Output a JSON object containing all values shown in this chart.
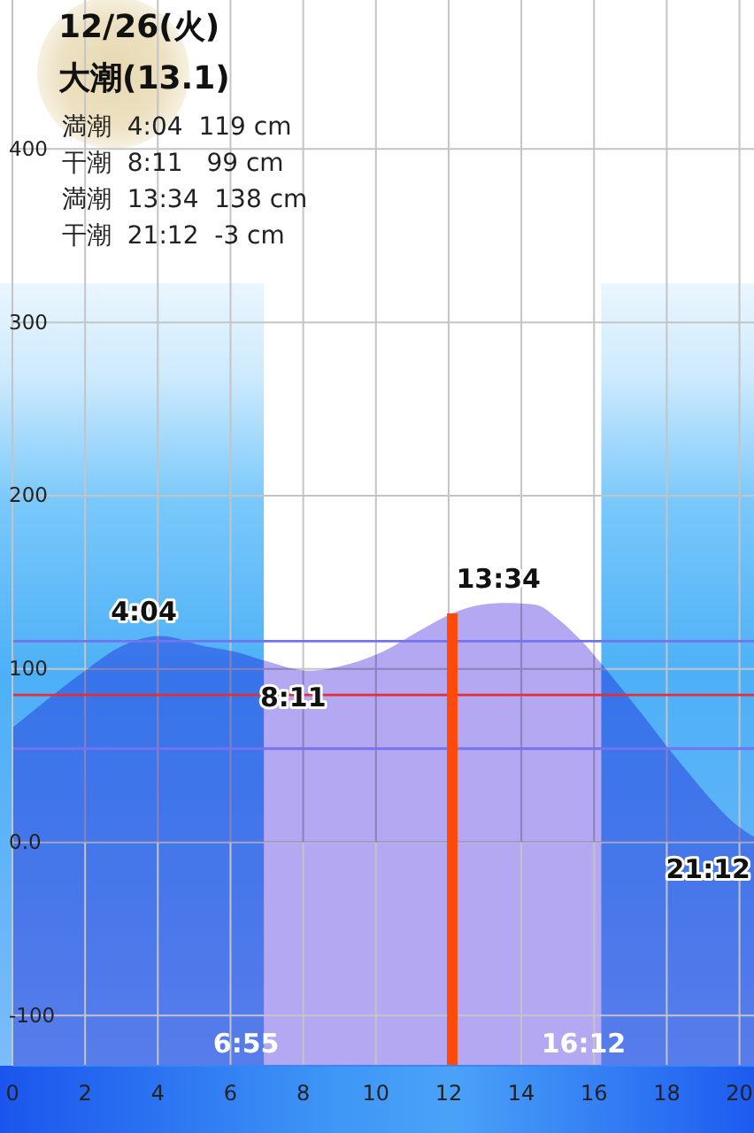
{
  "chart_data": {
    "type": "area",
    "title": "12/26(火)",
    "subtitle": "大潮(13.1)",
    "x": [
      0,
      1,
      2,
      2.9,
      4.07,
      5.3,
      6.1,
      6.9,
      8.18,
      9.3,
      10.2,
      11.2,
      12.1,
      12.9,
      13.57,
      14.4,
      15,
      15.66,
      16.2,
      16.86,
      17.5,
      18.05,
      18.6,
      19.2,
      19.8,
      20.4
    ],
    "values": [
      66,
      83,
      99,
      112,
      119,
      113,
      110,
      105,
      99,
      103,
      110,
      122,
      132,
      137,
      138,
      137,
      129,
      116,
      103,
      86,
      69,
      54,
      40,
      25,
      12,
      3
    ],
    "color": "#b4a8f2",
    "xlim": [
      0,
      20.4
    ],
    "xticks": [
      0,
      2,
      4,
      6,
      8,
      10,
      12,
      14,
      16,
      18,
      20
    ],
    "ylim": [
      -129,
      486
    ],
    "yticks": [
      -100,
      {
        "value": 0,
        "label": "0.0"
      },
      100,
      200,
      300,
      400
    ],
    "grid": true,
    "ref_lines": [
      {
        "axis": "y",
        "value": 116,
        "color": "#7373f0"
      },
      {
        "axis": "y",
        "value": 85,
        "color": "#e0303a"
      },
      {
        "axis": "y",
        "value": 54,
        "color": "#7373f0"
      },
      {
        "axis": "x",
        "value": 12.1,
        "color": "#ff4a0a"
      }
    ],
    "bands": [
      {
        "axis": "x",
        "from": 6.917,
        "to": 16.2,
        "color": "#ffffff"
      },
      {
        "axis": "y",
        "from": -129,
        "to": 0,
        "color": "#b4a8f2"
      }
    ],
    "annotations": [
      "満潮  4:04  119 cm",
      "干潮  8:11   99 cm",
      "満潮  13:34  138 cm",
      "干潮  21:12  -3 cm",
      {
        "text": "4:04",
        "x": 4.07,
        "y": 119
      },
      {
        "text": "8:11",
        "x": 8.18,
        "y": 99
      },
      {
        "text": "13:34",
        "x": 13.57,
        "y": 138
      },
      "21:12",
      {
        "text": "6:55",
        "x": 6.917,
        "y": -116
      },
      {
        "text": "16:12",
        "x": 16.2,
        "y": -116
      }
    ]
  }
}
